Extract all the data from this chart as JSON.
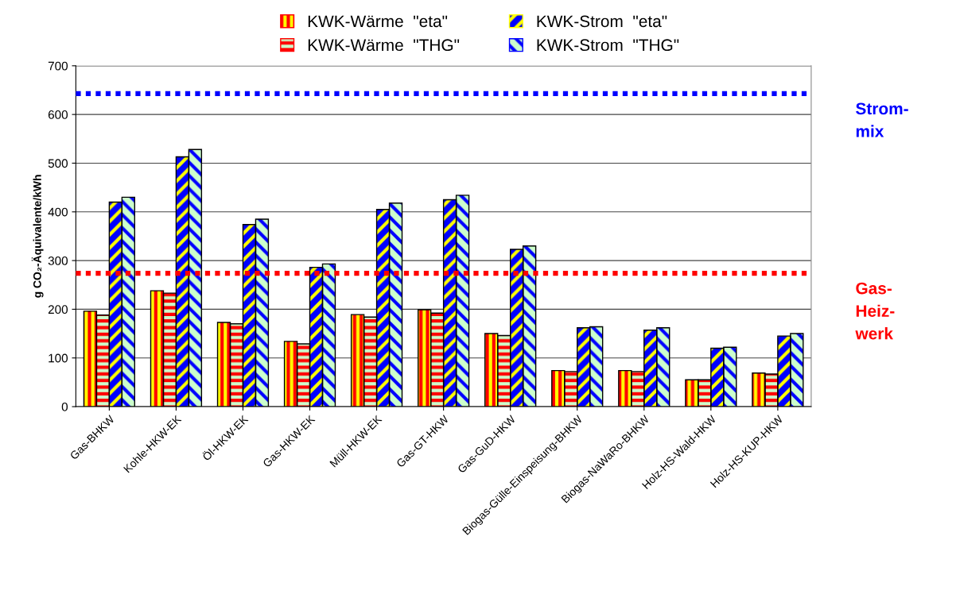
{
  "chart_data": {
    "type": "bar",
    "ylabel": "g CO₂-Äquivalente/kWh",
    "categories": [
      "Gas-BHKW",
      "Kohle-HKW-EK",
      "Öl-HKW-EK",
      "Gas-HKW-EK",
      "Müll-HKW-EK",
      "Gas-GT-HKW",
      "Gas-GuD-HKW",
      "Biogas-Gülle-Einspeisung-BHKW",
      "Biogas-NaWaRo-BHKW",
      "Holz-HS-Wald-HKW",
      "Holz-HS-KUP-HKW"
    ],
    "series": [
      {
        "name": "KWK-Wärme  \"eta\"",
        "color": "#ffff00",
        "values": [
          196,
          238,
          173,
          134,
          189,
          199,
          150,
          74,
          74,
          55,
          69
        ]
      },
      {
        "name": "KWK-Wärme  \"THG\"",
        "color": "#ccffcc",
        "values": [
          188,
          233,
          170,
          129,
          184,
          192,
          146,
          72,
          72,
          55,
          67
        ]
      },
      {
        "name": "KWK-Strom  \"eta\"",
        "color": "#0000ff",
        "values": [
          420,
          513,
          374,
          286,
          405,
          425,
          323,
          162,
          157,
          120,
          145
        ]
      },
      {
        "name": "KWK-Strom  \"THG\"",
        "color": "#ccffcc",
        "values": [
          430,
          528,
          385,
          293,
          418,
          434,
          330,
          164,
          162,
          122,
          150
        ]
      }
    ],
    "ylim": [
      0,
      700
    ],
    "yticks": [
      0,
      100,
      200,
      300,
      400,
      500,
      600,
      700
    ],
    "grid": "y",
    "legend": "top",
    "ref_lines": [
      {
        "axis": "y",
        "value": 643,
        "label": "Strom-\nmix",
        "color": "#0000ff",
        "line_style": "dotted"
      },
      {
        "axis": "y",
        "value": 274,
        "label": "Gas-\nHeiz-\nwerk",
        "color": "#ff0000",
        "line_style": "dotted"
      }
    ]
  }
}
